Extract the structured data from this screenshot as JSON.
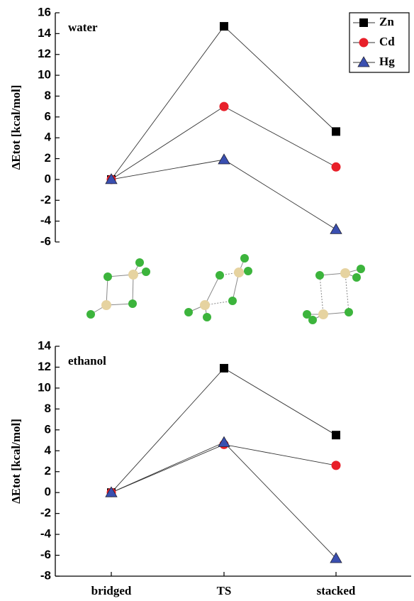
{
  "chart_data": [
    {
      "type": "line",
      "annotation": "water",
      "y_label": "ΔEtot [kcal/mol]",
      "categories": [
        null,
        null,
        null
      ],
      "ylim": [
        -6,
        16
      ],
      "yticks": [
        -6,
        -4,
        -2,
        0,
        2,
        4,
        6,
        8,
        10,
        12,
        14,
        16
      ],
      "legend": "upper right",
      "series": [
        {
          "name": "Zn",
          "color": "#000000",
          "marker": "square",
          "values": [
            0,
            14.7,
            4.6
          ]
        },
        {
          "name": "Cd",
          "color": "#e8202a",
          "marker": "circle",
          "values": [
            0,
            7.0,
            1.2
          ]
        },
        {
          "name": "Hg",
          "color": "#3a4fb0",
          "marker": "triangle",
          "values": [
            0,
            1.9,
            -4.8
          ]
        }
      ]
    },
    {
      "type": "line",
      "annotation": "ethanol",
      "y_label": "ΔEtot [kcal/mol]",
      "categories": [
        "bridged",
        "TS",
        "stacked"
      ],
      "ylim": [
        -8,
        14
      ],
      "yticks": [
        -8,
        -6,
        -4,
        -2,
        0,
        2,
        4,
        6,
        8,
        10,
        12,
        14
      ],
      "series": [
        {
          "color": "#000000",
          "marker": "square",
          "values": [
            0,
            11.9,
            5.5
          ]
        },
        {
          "color": "#e8202a",
          "marker": "circle",
          "values": [
            0,
            4.6,
            2.6
          ]
        },
        {
          "color": "#3a4fb0",
          "marker": "triangle",
          "values": [
            0,
            4.8,
            -6.3
          ]
        }
      ]
    }
  ]
}
